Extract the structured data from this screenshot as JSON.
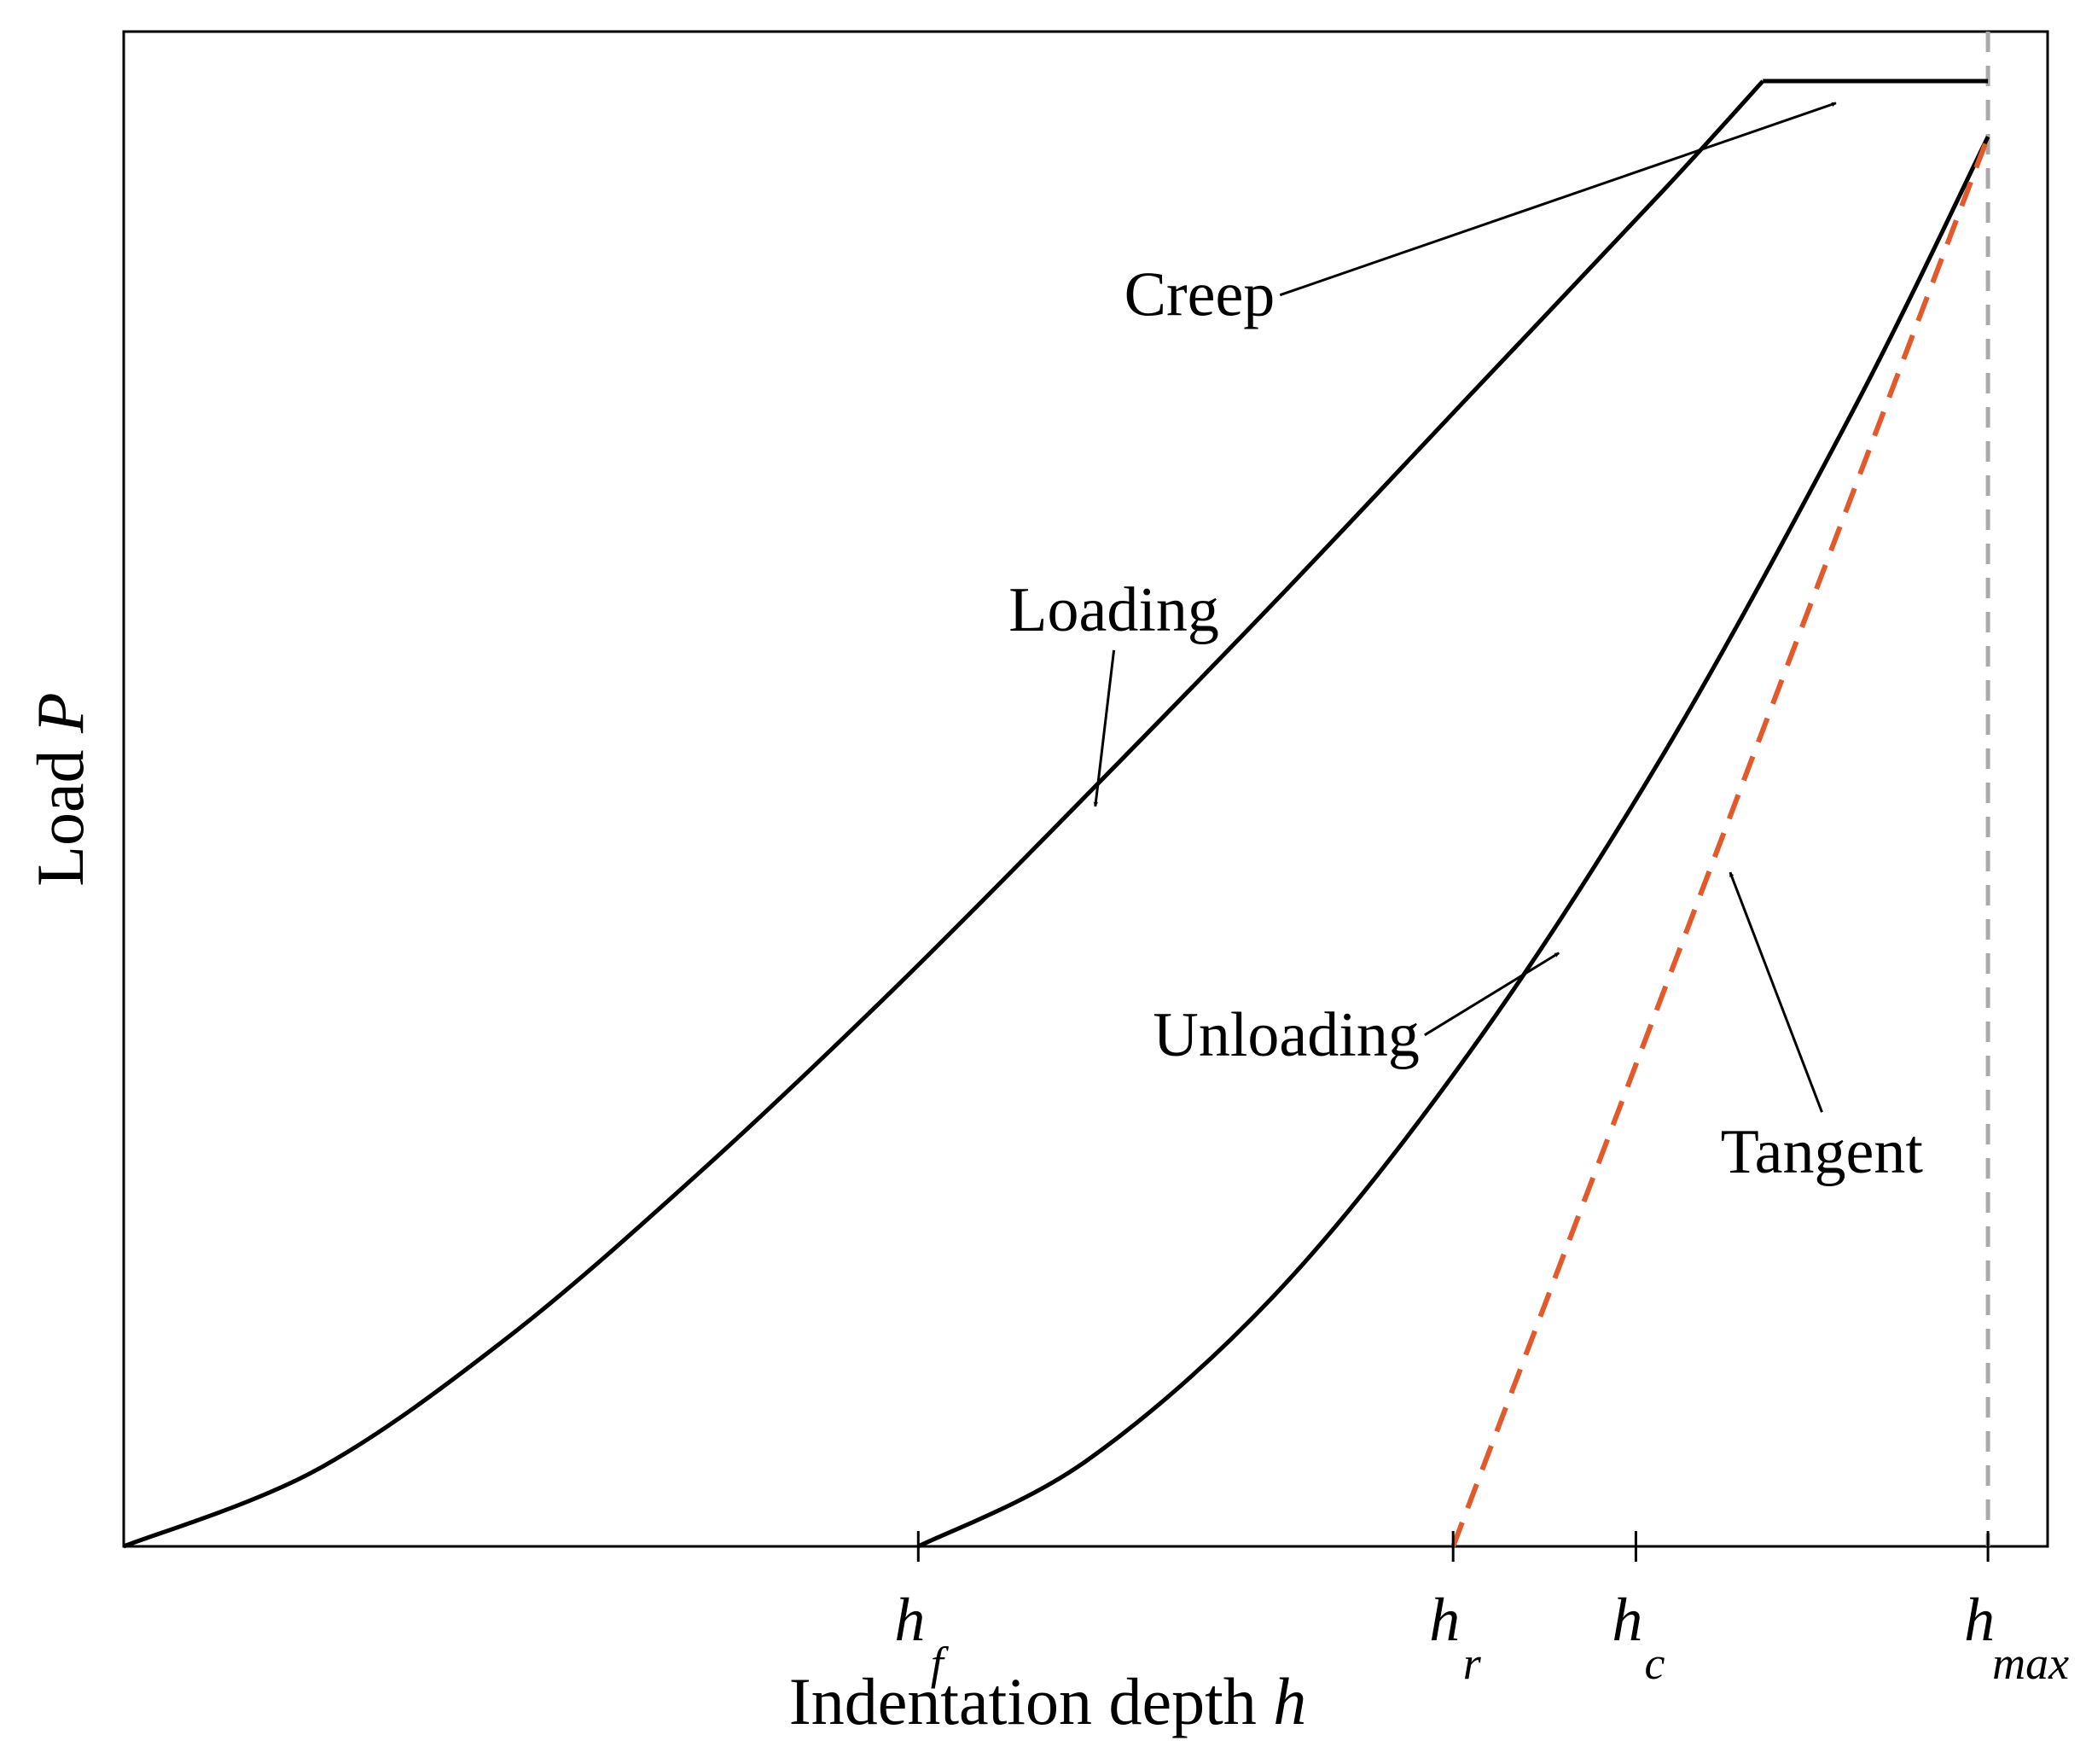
{
  "chart_data": {
    "type": "line",
    "title": "",
    "xlabel": "Indentation depth h",
    "ylabel": "Load P",
    "xlim": [
      0,
      1
    ],
    "ylim": [
      0,
      1
    ],
    "grid": false,
    "colors": {
      "curve": "#000000",
      "tangent": "#e25a2c",
      "hmax_line": "#aaaaaa"
    },
    "x_ticks": [
      {
        "main": "h",
        "sub": "f",
        "value": 0.413
      },
      {
        "main": "h",
        "sub": "r",
        "value": 0.691
      },
      {
        "main": "h",
        "sub": "c",
        "value": 0.786
      },
      {
        "main": "h",
        "sub": "max",
        "value": 0.969
      }
    ],
    "series": [
      {
        "points": [
          [
            0,
            0
          ],
          [
            0.1,
            0.052
          ],
          [
            0.2,
            0.143
          ],
          [
            0.3,
            0.256
          ],
          [
            0.4,
            0.38
          ],
          [
            0.5,
            0.512
          ],
          [
            0.6,
            0.647
          ],
          [
            0.7,
            0.786
          ],
          [
            0.8,
            0.925
          ],
          [
            0.852,
            1.0
          ]
        ]
      },
      {
        "points": [
          [
            0.852,
            1.0
          ],
          [
            0.969,
            1.0
          ]
        ]
      },
      {
        "points": [
          [
            0.413,
            0
          ],
          [
            0.5,
            0.058
          ],
          [
            0.6,
            0.174
          ],
          [
            0.7,
            0.338
          ],
          [
            0.8,
            0.54
          ],
          [
            0.9,
            0.778
          ],
          [
            0.969,
            0.962
          ]
        ]
      },
      {
        "dashed": true,
        "points": [
          [
            0.691,
            0
          ],
          [
            0.969,
            0.962
          ]
        ]
      }
    ],
    "annotations": [
      {
        "text": "Creep",
        "text_pos": [
          0.52,
          0.84
        ],
        "arrow_to": [
          0.89,
          0.985
        ]
      },
      {
        "text": "Loading",
        "text_pos": [
          0.46,
          0.625
        ],
        "arrow_to": [
          0.505,
          0.505
        ]
      },
      {
        "text": "Unloading",
        "text_pos": [
          0.535,
          0.335
        ],
        "arrow_to": [
          0.746,
          0.405
        ]
      },
      {
        "text": "Tangent",
        "text_pos": [
          0.83,
          0.255
        ],
        "arrow_to": [
          0.835,
          0.46
        ]
      }
    ]
  }
}
